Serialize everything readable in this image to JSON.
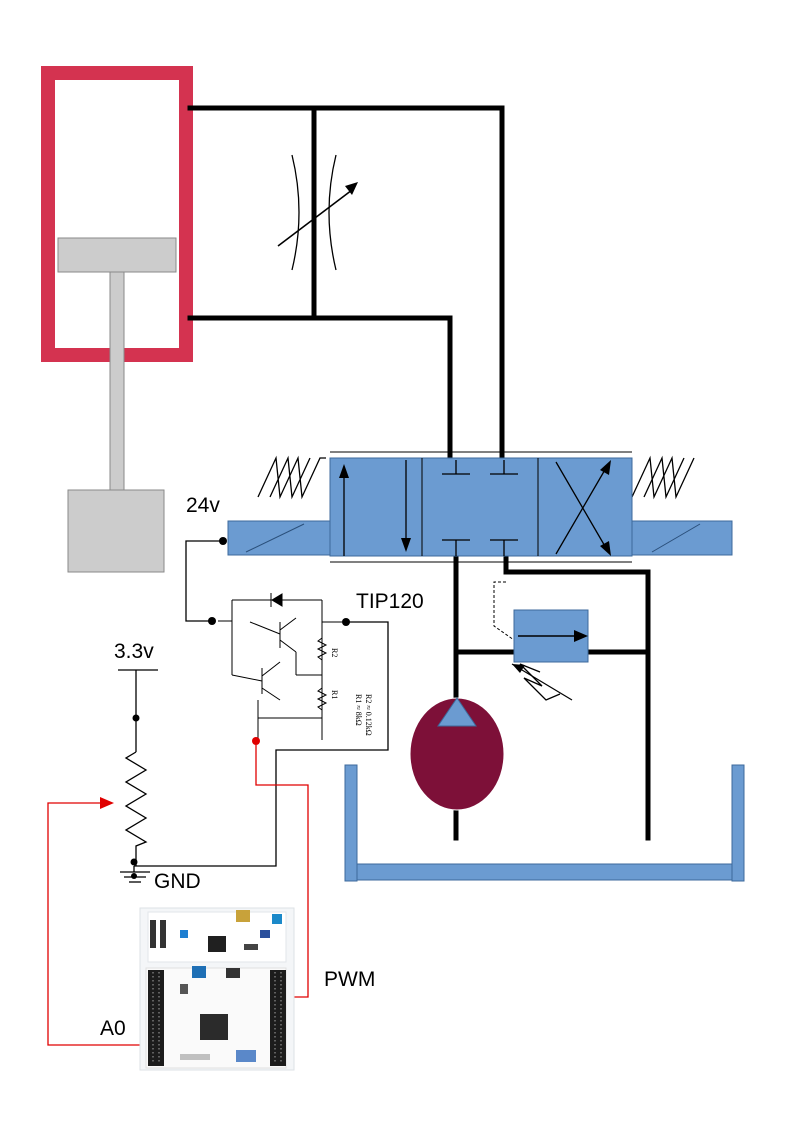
{
  "labels": {
    "supply_voltage": "24v",
    "transistor": "TIP120",
    "logic_voltage": "3.3v",
    "ground": "GND",
    "pwm_pin": "PWM",
    "analog_pin": "A0",
    "r2": "R2",
    "r1": "R1",
    "r1_value": "R1 ≈ 8kΩ",
    "r2_value": "R2 ≈ 0.12kΩ"
  },
  "colors": {
    "cylinder": "#d43350",
    "valve": "#6b9bd1",
    "pump": "#7d1038",
    "wire_signal": "#e00000",
    "pipe": "#000000"
  }
}
